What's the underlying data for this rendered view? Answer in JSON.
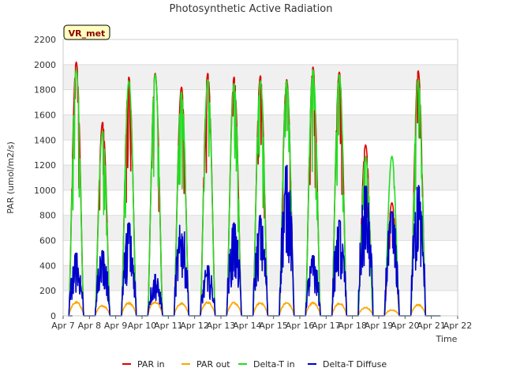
{
  "chart_data": {
    "type": "line",
    "title": "Photosynthetic Active Radiation",
    "xlabel": "Time",
    "ylabel": "PAR (umol/m2/s)",
    "ylim": [
      0,
      2200
    ],
    "yticks": [
      0,
      200,
      400,
      600,
      800,
      1000,
      1200,
      1400,
      1600,
      1800,
      2000,
      2200
    ],
    "xlim": [
      7,
      22
    ],
    "xticks": [
      7,
      8,
      9,
      10,
      11,
      12,
      13,
      14,
      15,
      16,
      17,
      18,
      19,
      20,
      21,
      22
    ],
    "xtick_labels": [
      "Apr 7",
      "Apr 8",
      "Apr 9",
      "Apr 10",
      "Apr 11",
      "Apr 12",
      "Apr 13",
      "Apr 14",
      "Apr 15",
      "Apr 16",
      "Apr 17",
      "Apr 18",
      "Apr 19",
      "Apr 20",
      "Apr 21",
      "Apr 22"
    ],
    "site_label": "VR_met",
    "legend_position": "bottom",
    "days": [
      7.5,
      8.5,
      9.5,
      10.5,
      11.5,
      12.5,
      13.5,
      14.5,
      15.5,
      16.5,
      17.5,
      18.5,
      19.5,
      20.5
    ],
    "series": [
      {
        "name": "PAR in",
        "color": "#dd0000",
        "daily_peak": [
          2020,
          1540,
          1900,
          1930,
          1820,
          1930,
          1900,
          1910,
          1880,
          1980,
          1940,
          1360,
          900,
          1950
        ]
      },
      {
        "name": "PAR out",
        "color": "#ffa500",
        "daily_peak": [
          115,
          85,
          110,
          120,
          105,
          115,
          110,
          110,
          110,
          110,
          105,
          70,
          50,
          95
        ]
      },
      {
        "name": "Delta-T in",
        "color": "#22dd22",
        "daily_peak": [
          1960,
          1470,
          1870,
          1920,
          1780,
          1880,
          1850,
          1870,
          1870,
          1960,
          1920,
          1270,
          1270,
          1880
        ]
      },
      {
        "name": "Delta-T Diffuse",
        "color": "#0000cc",
        "daily_peak": [
          500,
          520,
          740,
          330,
          760,
          400,
          740,
          800,
          1200,
          480,
          760,
          1040,
          830,
          1040
        ]
      }
    ]
  }
}
